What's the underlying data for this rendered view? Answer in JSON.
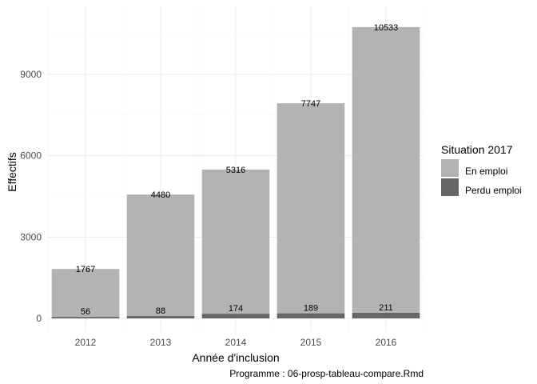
{
  "chart_data": {
    "type": "bar",
    "stacked": true,
    "categories": [
      "2012",
      "2013",
      "2014",
      "2015",
      "2016"
    ],
    "series": [
      {
        "name": "Perdu emploi",
        "values": [
          56,
          88,
          174,
          189,
          211
        ],
        "color": "#666666"
      },
      {
        "name": "En emploi",
        "values": [
          1767,
          4480,
          5316,
          7747,
          10533
        ],
        "color": "#b3b3b3"
      }
    ],
    "title": "",
    "xlabel": "Année d'inclusion",
    "ylabel": "Effectifs",
    "ylim": [
      0,
      11000
    ],
    "yticks": [
      0,
      3000,
      6000,
      9000
    ],
    "ytick_labels": [
      "0",
      "3000",
      "6000",
      "9000"
    ],
    "grid": true,
    "legend": {
      "title": "Situation 2017",
      "position": "right",
      "entries": [
        {
          "label": "En emploi",
          "color": "#b3b3b3"
        },
        {
          "label": "Perdu emploi",
          "color": "#666666"
        }
      ]
    },
    "caption": "Programme : 06-prosp-tableau-compare.Rmd"
  }
}
